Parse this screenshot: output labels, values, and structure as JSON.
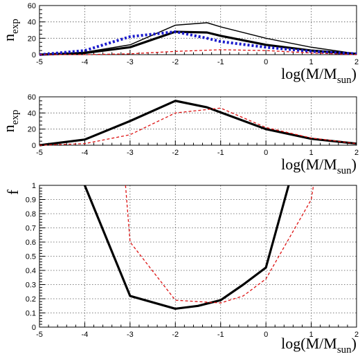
{
  "chart_data": [
    {
      "type": "line",
      "ylabel": {
        "main": "n",
        "sub": "exp"
      },
      "xlabel": {
        "main": "log(M/M",
        "sub": "sun",
        "close": ")"
      },
      "xlim": [
        -5,
        2
      ],
      "ylim": [
        0,
        60
      ],
      "grid": true,
      "x_ticks": [
        "-5",
        "-4",
        "-3",
        "-2",
        "-1",
        "0",
        "1",
        "2"
      ],
      "y_ticks": [
        "0",
        "20",
        "40",
        "60"
      ],
      "series": [
        {
          "style": "thin-black",
          "color": "#000000",
          "x": [
            -5,
            -4,
            -3,
            -2,
            -1.3,
            -1,
            0,
            1,
            2
          ],
          "y": [
            0,
            3,
            12,
            36,
            39,
            34,
            20,
            9,
            1
          ]
        },
        {
          "style": "thick-black",
          "color": "#000000",
          "x": [
            -5,
            -4,
            -3,
            -2,
            -1.3,
            -1,
            0,
            1,
            2
          ],
          "y": [
            0,
            2,
            9,
            28,
            27,
            23,
            12,
            5,
            1
          ]
        },
        {
          "style": "thick-blue-dotted",
          "color": "#1a1acc",
          "x": [
            -5,
            -4,
            -3,
            -2,
            -1.3,
            -1,
            0,
            1,
            2
          ],
          "y": [
            0,
            5,
            22,
            28,
            20,
            16,
            9,
            4,
            1
          ]
        },
        {
          "style": "thin-red-dashed",
          "color": "#dd1111",
          "x": [
            -5,
            -4,
            -3,
            -2,
            -1,
            0,
            1,
            2
          ],
          "y": [
            0,
            0,
            1,
            4,
            6,
            5,
            2,
            0
          ]
        }
      ]
    },
    {
      "type": "line",
      "ylabel": {
        "main": "n",
        "sub": "exp"
      },
      "xlabel": {
        "main": "log(M/M",
        "sub": "sun",
        "close": ")"
      },
      "xlim": [
        -5,
        2
      ],
      "ylim": [
        0,
        60
      ],
      "grid": true,
      "x_ticks": [
        "-5",
        "-4",
        "-3",
        "-2",
        "-1",
        "0",
        "1",
        "2"
      ],
      "y_ticks": [
        "0",
        "20",
        "40",
        "60"
      ],
      "series": [
        {
          "style": "thick-black",
          "color": "#000000",
          "x": [
            -5,
            -4,
            -3,
            -2,
            -1.3,
            0,
            1,
            2
          ],
          "y": [
            0,
            7,
            30,
            55,
            47,
            20,
            8,
            2
          ]
        },
        {
          "style": "thin-red-dashed",
          "color": "#dd1111",
          "x": [
            -5,
            -4,
            -3,
            -2,
            -1,
            0,
            1,
            2
          ],
          "y": [
            0,
            2,
            13,
            40,
            46,
            22,
            9,
            2
          ]
        }
      ]
    },
    {
      "type": "line",
      "ylabel": {
        "main": "f",
        "sub": ""
      },
      "xlabel": {
        "main": "log(M/M",
        "sub": "sun",
        "close": ")"
      },
      "xlim": [
        -5,
        2
      ],
      "ylim": [
        0,
        1
      ],
      "grid": true,
      "x_ticks": [
        "-5",
        "-4",
        "-3",
        "-2",
        "-1",
        "0",
        "1",
        "2"
      ],
      "y_ticks": [
        "0",
        "0.1",
        "0.2",
        "0.3",
        "0.4",
        "0.5",
        "0.6",
        "0.7",
        "0.8",
        "0.9",
        "1"
      ],
      "series": [
        {
          "style": "thick-black",
          "color": "#000000",
          "x": [
            -4,
            -3,
            -2,
            -1.5,
            -1,
            -0.5,
            0,
            0.5
          ],
          "y": [
            1.0,
            0.22,
            0.13,
            0.15,
            0.19,
            0.3,
            0.42,
            1.0
          ]
        },
        {
          "style": "thin-red-dashed",
          "color": "#dd1111",
          "x": [
            -3.1,
            -3,
            -2,
            -1,
            -0.5,
            0,
            1,
            1.05
          ],
          "y": [
            1.0,
            0.6,
            0.19,
            0.17,
            0.22,
            0.34,
            0.9,
            1.0
          ]
        }
      ]
    }
  ]
}
